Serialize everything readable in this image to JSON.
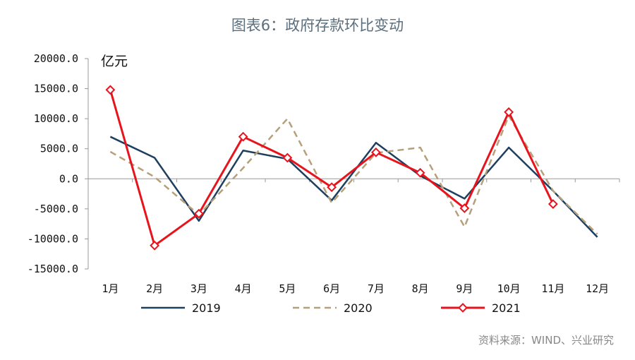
{
  "chart_data": {
    "type": "line",
    "title": "图表6：政府存款环比变动",
    "unit_label": "亿元",
    "source": "资料来源：WIND、兴业研究",
    "categories": [
      "1月",
      "2月",
      "3月",
      "4月",
      "5月",
      "6月",
      "7月",
      "8月",
      "9月",
      "10月",
      "11月",
      "12月"
    ],
    "ylim": [
      -15000,
      20000
    ],
    "y_ticks": [
      20000,
      15000,
      10000,
      5000,
      0,
      -5000,
      -10000,
      -15000
    ],
    "y_tick_labels": [
      "20000.0",
      "15000.0",
      "10000.0",
      "5000.0",
      "0.0",
      "-5000.0",
      "-10000.0",
      "-15000.0"
    ],
    "grid": false,
    "legend_position": "bottom",
    "series": [
      {
        "name": "2019",
        "color": "#1f3f5f",
        "style": "solid",
        "values": [
          7000,
          3500,
          -7000,
          4700,
          3300,
          -3600,
          6000,
          500,
          -3300,
          5200,
          -2000,
          -9700
        ]
      },
      {
        "name": "2020",
        "color": "#b5a07a",
        "style": "dashed",
        "values": [
          4500,
          300,
          -6000,
          1800,
          10000,
          -4000,
          4300,
          5200,
          -8000,
          10500,
          -2000,
          -9200
        ]
      },
      {
        "name": "2021",
        "color": "#e8141d",
        "style": "solid",
        "marker": "diamond",
        "values": [
          14800,
          -11100,
          -5800,
          7000,
          3500,
          -1400,
          4400,
          1000,
          -4900,
          11100,
          -4200,
          null
        ]
      }
    ]
  }
}
